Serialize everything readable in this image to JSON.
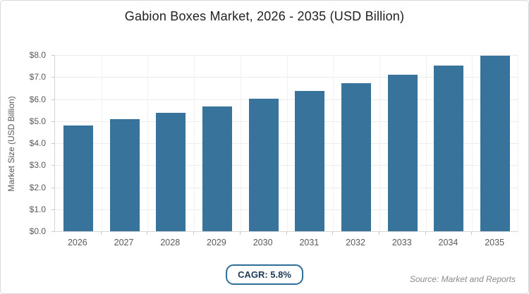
{
  "title": "Gabion Boxes Market, 2026 - 2035 (USD Billion)",
  "colors": {
    "bar": "#38739C",
    "badge_border": "#2E6E99",
    "badge_text": "#1F3A55",
    "axis_line": "#D6D6D6",
    "gridline": "#ECECEC",
    "tick_text": "#595959"
  },
  "footer": {
    "cagr_label": "CAGR: 5.8%",
    "source": "Source: Market and Reports"
  },
  "chart_data": {
    "type": "bar",
    "title": "Gabion Boxes Market, 2026 - 2035 (USD Billion)",
    "categories": [
      "2026",
      "2027",
      "2028",
      "2029",
      "2030",
      "2031",
      "2032",
      "2033",
      "2034",
      "2035"
    ],
    "values": [
      4.8,
      5.08,
      5.37,
      5.68,
      6.01,
      6.36,
      6.73,
      7.12,
      7.53,
      7.97
    ],
    "xlabel": "",
    "ylabel": "Market Size (USD Billion)",
    "ylim": [
      0,
      8
    ],
    "ytick_step": 1,
    "ytick_labels": [
      "$0.0",
      "$1.0",
      "$2.0",
      "$3.0",
      "$4.0",
      "$5.0",
      "$6.0",
      "$7.0",
      "$8.0"
    ],
    "grid": true,
    "legend_position": "none",
    "annotations": [
      "CAGR: 5.8%"
    ]
  }
}
